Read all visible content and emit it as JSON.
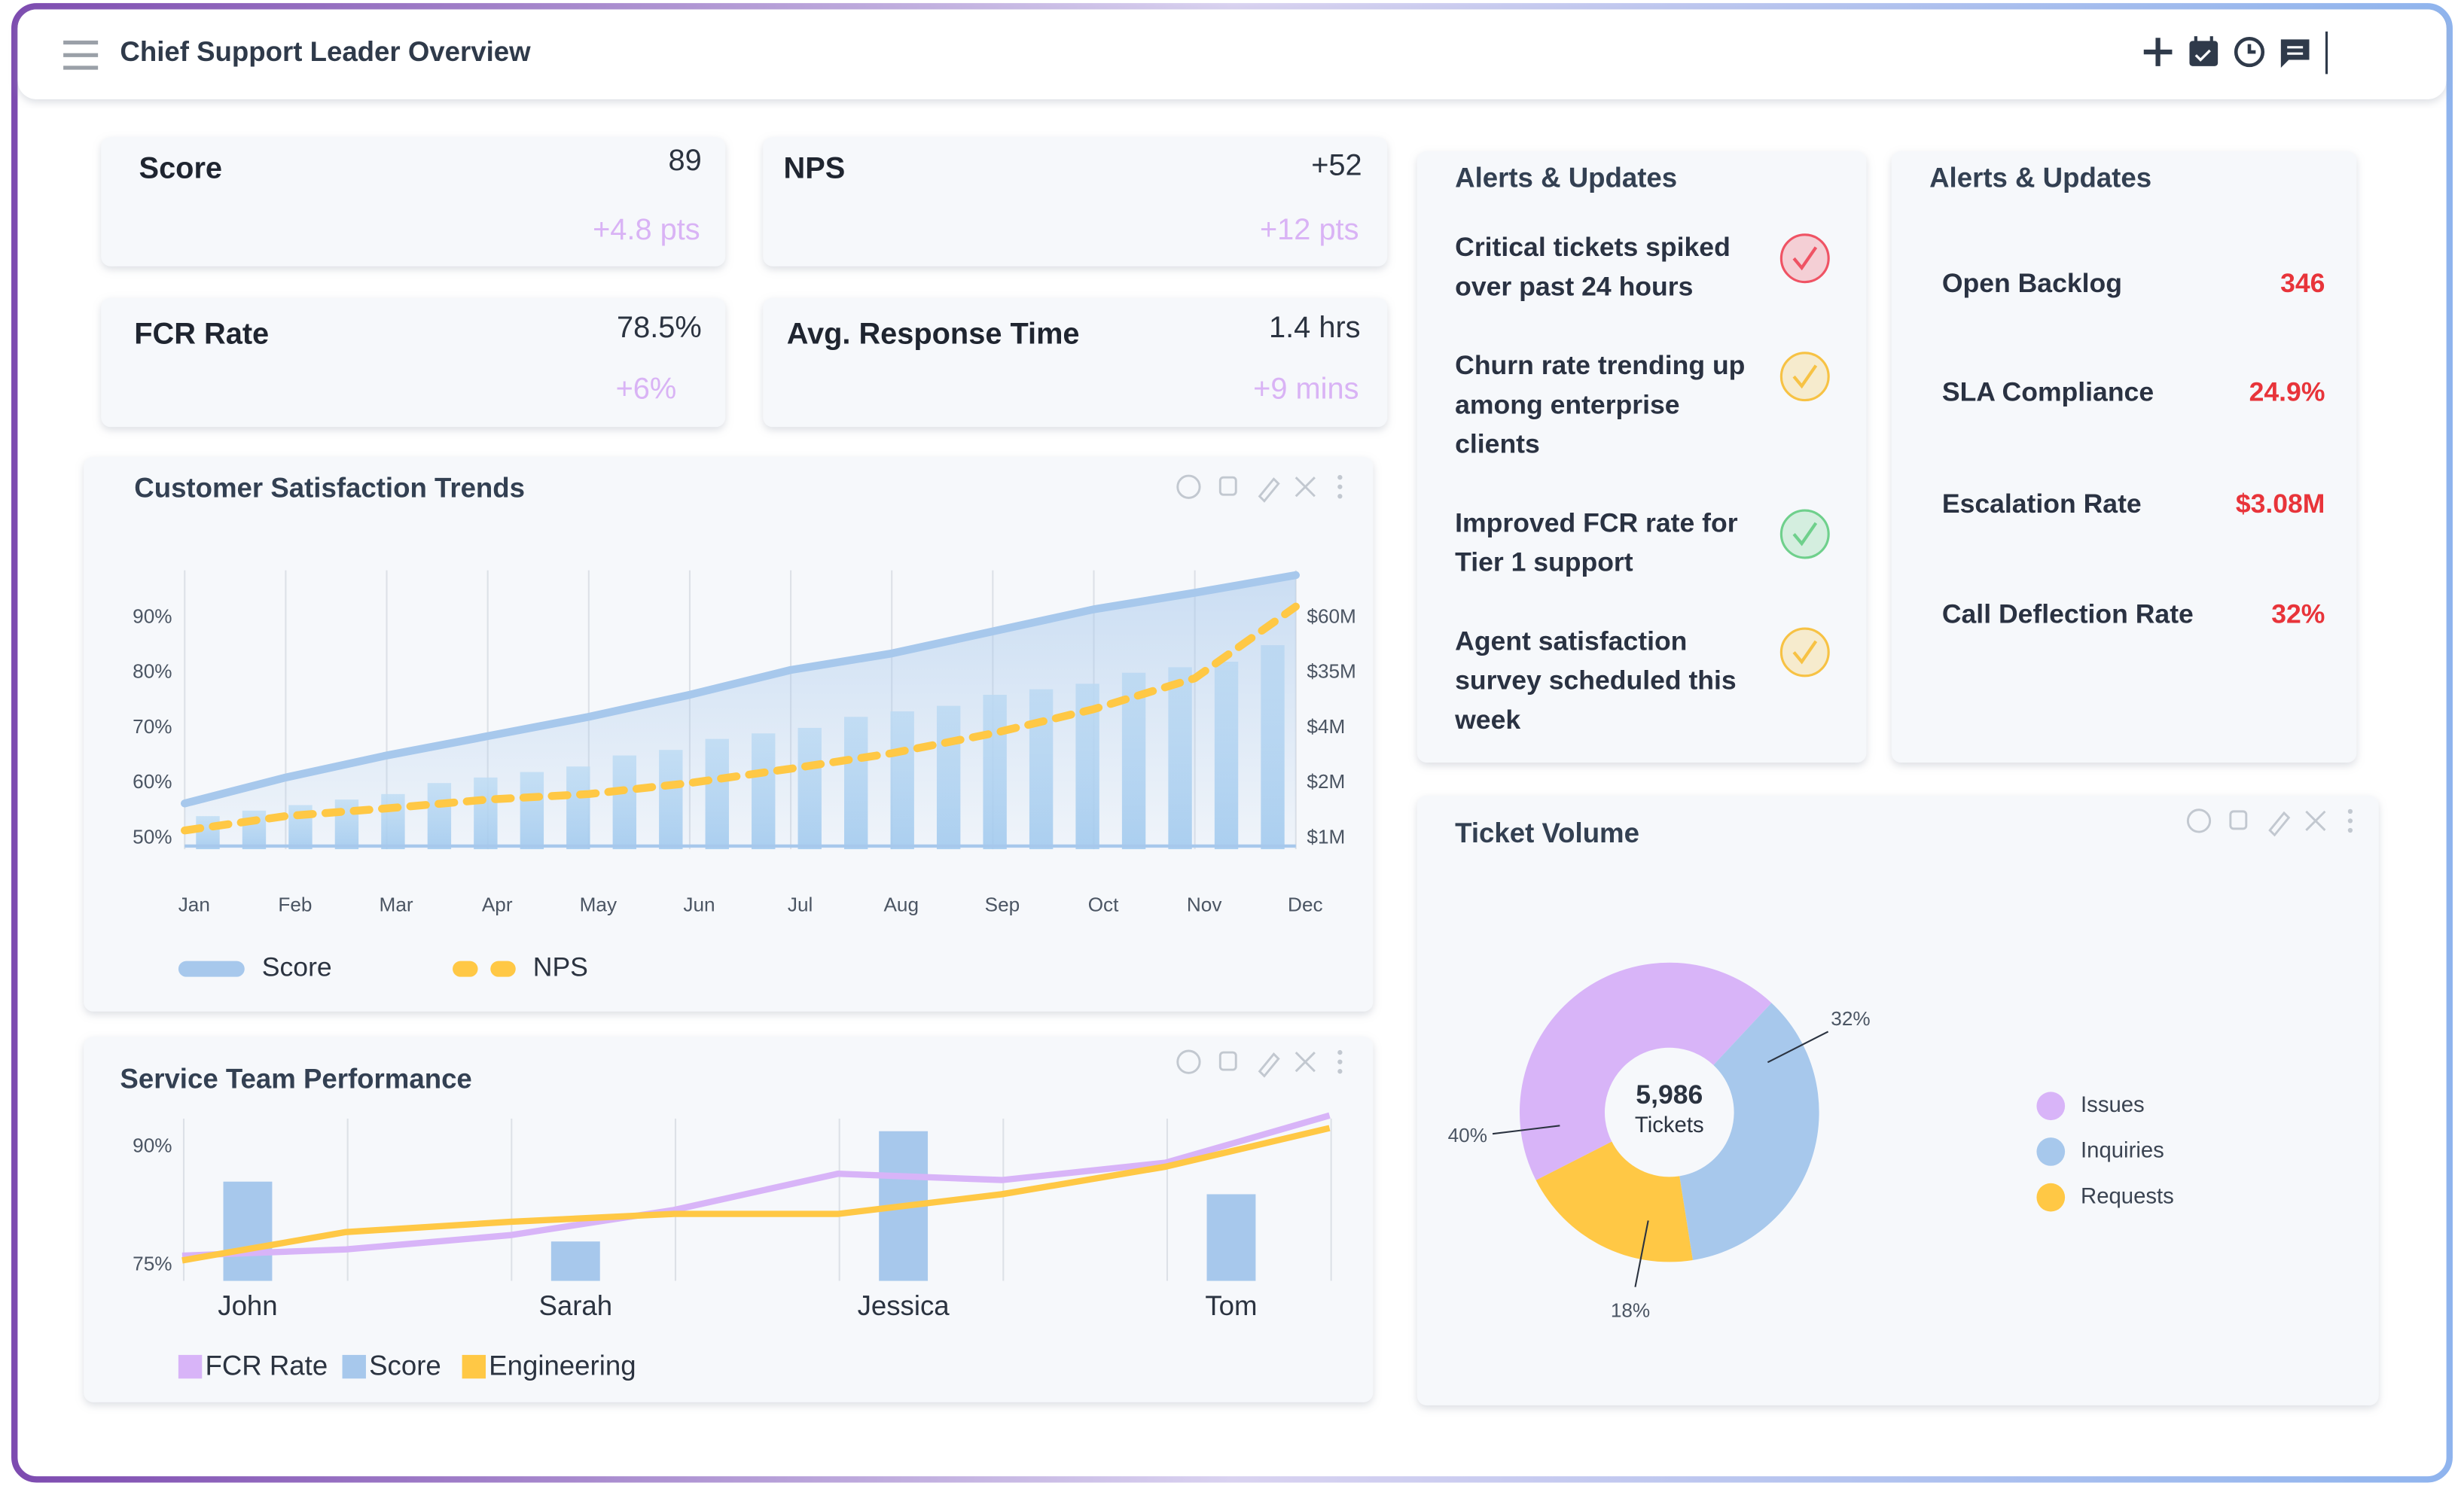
{
  "header": {
    "title": "Chief Support Leader Overview"
  },
  "kpis": [
    {
      "label": "Score",
      "value": "89",
      "change": "+4.8 pts"
    },
    {
      "label": "NPS",
      "value": "+52",
      "change": "+12 pts"
    },
    {
      "label": "FCR Rate",
      "value": "78.5%",
      "change": "+6%"
    },
    {
      "label": "Avg. Response Time",
      "value": "1.4 hrs",
      "change": "+9 mins"
    }
  ],
  "alerts": {
    "title": "Alerts & Updates",
    "items": [
      {
        "lines": [
          "Critical tickets spiked",
          "over past 24 hours"
        ],
        "color": "#ef5364"
      },
      {
        "lines": [
          "Churn rate trending up",
          "among enterprise",
          "clients"
        ],
        "color": "#f7c244"
      },
      {
        "lines": [
          "Improved FCR rate for",
          "Tier 1 support"
        ],
        "color": "#6fd08c"
      },
      {
        "lines": [
          "Agent satisfaction",
          "survey scheduled this",
          "week"
        ],
        "color": "#f7c244"
      }
    ]
  },
  "metrics": {
    "title": "Alerts & Updates",
    "items": [
      {
        "label": "Open Backlog",
        "value": "346"
      },
      {
        "label": "SLA Compliance",
        "value": "24.9%"
      },
      {
        "label": "Escalation Rate",
        "value": "$3.08M"
      },
      {
        "label": "Call Deflection Rate",
        "value": "32%"
      }
    ]
  },
  "chart_data": [
    {
      "type": "line",
      "title": "Customer Satisfaction Trends",
      "categories": [
        "Jan",
        "Feb",
        "Mar",
        "Apr",
        "May",
        "Jun",
        "Jul",
        "Aug",
        "Sep",
        "Oct",
        "Nov",
        "Dec"
      ],
      "series": [
        {
          "name": "Score",
          "color": "#a7c8ec",
          "values": [
            56.3,
            61,
            65,
            68.5,
            72,
            76,
            80.5,
            83.5,
            87.5,
            91.5,
            94.5,
            97.7
          ]
        },
        {
          "name": "NPS",
          "color": "#ffc845",
          "dashed": true,
          "values": [
            51.4,
            54,
            55.4,
            57,
            58,
            60,
            62.6,
            65.4,
            69,
            73.4,
            79,
            92
          ]
        }
      ],
      "bars": {
        "color": "#bcdcf3",
        "values": [
          54,
          55,
          56,
          57,
          58,
          60,
          61,
          62,
          63,
          65,
          66,
          68,
          69,
          70,
          72,
          73,
          74,
          76,
          77,
          78,
          80,
          81,
          82,
          85
        ]
      },
      "ylim": [
        48,
        100
      ],
      "yticks": [
        {
          "value": 50,
          "label": "50%"
        },
        {
          "value": 60,
          "label": "60%"
        },
        {
          "value": 70,
          "label": "70%"
        },
        {
          "value": 80,
          "label": "80%"
        },
        {
          "value": 90,
          "label": "90%"
        }
      ],
      "y2_labels": [
        "$1M",
        "$2M",
        "$4M",
        "$35M",
        "$60M"
      ],
      "grid": true
    },
    {
      "type": "combo",
      "title": "Service Team Performance",
      "categories": [
        "John",
        "Sarah",
        "Jessica",
        "Tom"
      ],
      "series": [
        {
          "name": "FCR Rate",
          "color": "#d8b4f8",
          "kind": "line",
          "x": [
            -0.2,
            0.3,
            0.8,
            1.3,
            1.8,
            2.3,
            2.8,
            3.3
          ],
          "values": [
            76.2,
            77,
            78.8,
            82,
            86.6,
            85.8,
            88,
            94
          ]
        },
        {
          "name": "Score",
          "color": "#a7c8ec",
          "kind": "bar",
          "values": [
            85.6,
            78,
            92,
            84
          ]
        },
        {
          "name": "Engineering",
          "color": "#ffc845",
          "kind": "line",
          "x": [
            -0.2,
            0.3,
            0.8,
            1.3,
            1.8,
            2.3,
            2.8,
            3.3
          ],
          "values": [
            75.6,
            79.2,
            80.5,
            81.5,
            81.5,
            84,
            87.5,
            92.4
          ]
        }
      ],
      "ylim": [
        73,
        97
      ],
      "yticks": [
        {
          "value": 75,
          "label": "75%"
        },
        {
          "value": 90,
          "label": "90%"
        }
      ],
      "grid": true
    },
    {
      "type": "donut",
      "title": "Ticket Volume",
      "categories": [
        "Issues",
        "Inquiries",
        "Requests"
      ],
      "values": [
        40,
        32,
        18
      ],
      "value_labels": [
        "40%",
        "32%",
        "18%"
      ],
      "colors": [
        "#d8b4f8",
        "#a7c8ec",
        "#ffc845"
      ],
      "center_value": "5,986",
      "center_label": "Tickets"
    }
  ]
}
